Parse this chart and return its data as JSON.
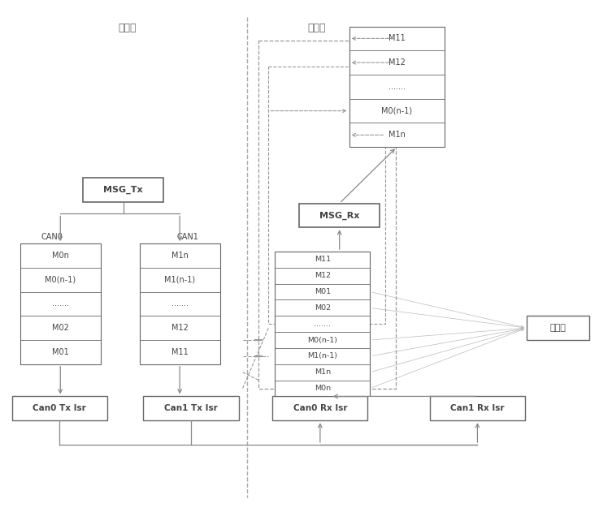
{
  "fig_width": 7.53,
  "fig_height": 6.26,
  "bg_color": "#ffffff",
  "line_color": "#888888",
  "box_edge_color": "#666666",
  "text_color": "#444444",
  "dashed_color": "#999999",
  "label_fasong": "发送侧",
  "label_jieshou": "接收侧",
  "label_msg_tx": "MSG_Tx",
  "label_msg_rx": "MSG_Rx",
  "label_can0": "CAN0",
  "label_can1": "CAN1",
  "label_can0_tx": "Can0 Tx Isr",
  "label_can1_tx": "Can1 Tx Isr",
  "label_can0_rx": "Can0 Rx Isr",
  "label_can1_rx": "Can1 Rx Isr",
  "label_huishou": "回收站",
  "tx_stack0": [
    "M0n",
    "M0(n-1)",
    ".......",
    "M02",
    "M01"
  ],
  "tx_stack1": [
    "M1n",
    "M1(n-1)",
    ".......",
    "M12",
    "M11"
  ],
  "rx_top_stack": [
    "M11",
    "M12",
    ".......",
    "M0(n-1)",
    "M1n"
  ],
  "rx_mid_stack": [
    "M11",
    "M12",
    "M01",
    "M02",
    ".......",
    "M0(n-1)",
    "M1(n-1)",
    "M1n",
    "M0n"
  ]
}
